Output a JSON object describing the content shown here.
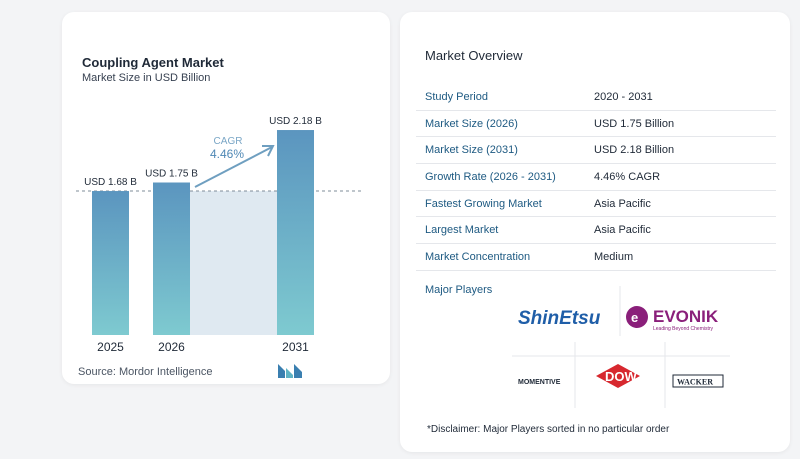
{
  "chart_data": {
    "type": "bar",
    "title": "Coupling Agent Market",
    "subtitle": "Market Size in USD Billion",
    "categories": [
      "2025",
      "2026",
      "2031"
    ],
    "values": [
      1.68,
      1.75,
      2.18
    ],
    "value_labels": [
      "USD 1.68 B",
      "USD 1.75 B",
      "USD 2.18 B"
    ],
    "cagr_label": "CAGR",
    "cagr_value": "4.46%",
    "bar_color_top": "#5b95bf",
    "bar_color_bottom": "#7ecad0"
  },
  "source": "Source:  Mordor Intelligence",
  "overview": {
    "title": "Market Overview",
    "rows": [
      {
        "label": "Study Period",
        "value": "2020 - 2031"
      },
      {
        "label": "Market Size (2026)",
        "value": "USD 1.75 Billion"
      },
      {
        "label": "Market Size (2031)",
        "value": "USD 2.18 Billion"
      },
      {
        "label": "Growth Rate (2026 - 2031)",
        "value": "4.46% CAGR"
      },
      {
        "label": "Fastest Growing Market",
        "value": "Asia Pacific"
      },
      {
        "label": "Largest Market",
        "value": "Asia Pacific"
      },
      {
        "label": "Market Concentration",
        "value": "Medium"
      }
    ]
  },
  "players": {
    "title": "Major Players",
    "logos": [
      "ShinEtsu",
      "EVONIK",
      "Leading Beyond Chemistry",
      "MOMENTIVE",
      "DOW",
      "WACKER"
    ]
  },
  "disclaimer": "*Disclaimer: Major Players sorted in no particular order"
}
